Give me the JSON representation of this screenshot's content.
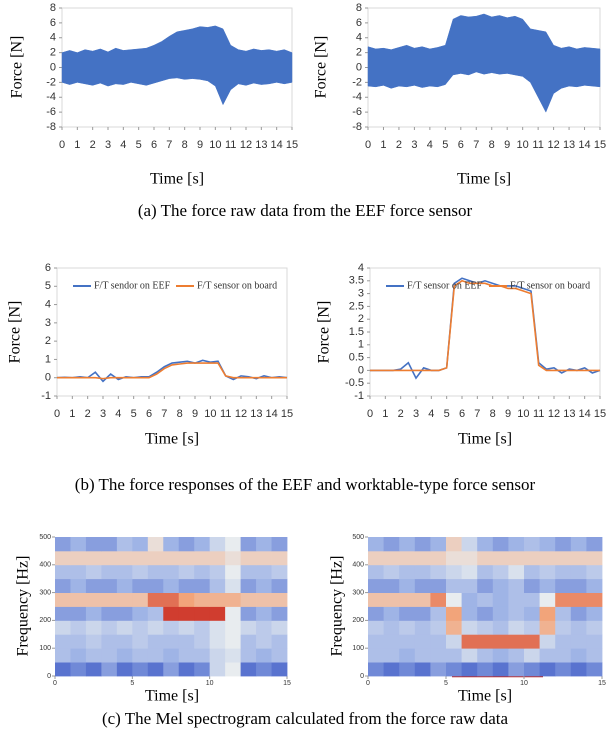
{
  "chart_data": [
    {
      "type": "band",
      "ylabel": "Force [N]",
      "xlabel": "Time [s]",
      "xlim": [
        0,
        15
      ],
      "xticks": [
        0,
        1,
        2,
        3,
        4,
        5,
        6,
        7,
        8,
        9,
        10,
        11,
        12,
        13,
        14,
        15
      ],
      "ylim": [
        -8,
        8
      ],
      "yticks": [
        -8,
        -6,
        -4,
        -2,
        0,
        2,
        4,
        6,
        8
      ],
      "x": [
        0,
        0.5,
        1,
        1.5,
        2,
        2.5,
        3,
        3.5,
        4,
        4.5,
        5,
        5.5,
        6,
        6.5,
        7,
        7.5,
        8,
        8.5,
        9,
        9.5,
        10,
        10.5,
        11,
        11.5,
        12,
        12.5,
        13,
        13.5,
        14,
        14.5,
        15
      ],
      "series": [
        {
          "color": "#4472c4",
          "high": [
            2,
            2.3,
            2,
            2.4,
            2.2,
            2.5,
            2.1,
            2.6,
            2.3,
            2.4,
            2.5,
            2.6,
            3,
            3.5,
            4.2,
            4.8,
            5,
            5.2,
            5.5,
            5.4,
            5.6,
            5.2,
            3,
            2.4,
            2.2,
            2.5,
            2.3,
            2.4,
            2.2,
            2.4,
            2
          ],
          "low": [
            -2,
            -2.3,
            -2,
            -2.2,
            -2.4,
            -2.1,
            -2.5,
            -2.2,
            -2.3,
            -2,
            -2.2,
            -2.4,
            -2.1,
            -1.8,
            -1.5,
            -1.4,
            -1.6,
            -1.5,
            -1.6,
            -1.8,
            -2.5,
            -5,
            -3,
            -2.2,
            -2.4,
            -2.1,
            -2.3,
            -2.2,
            -2,
            -2.2,
            -2
          ]
        }
      ]
    },
    {
      "type": "band",
      "ylabel": "Force [N]",
      "xlabel": "Time [s]",
      "xlim": [
        0,
        15
      ],
      "xticks": [
        0,
        1,
        2,
        3,
        4,
        5,
        6,
        7,
        8,
        9,
        10,
        11,
        12,
        13,
        14,
        15
      ],
      "ylim": [
        -8,
        8
      ],
      "yticks": [
        -8,
        -6,
        -4,
        -2,
        0,
        2,
        4,
        6,
        8
      ],
      "x": [
        0,
        0.5,
        1,
        1.5,
        2,
        2.5,
        3,
        3.5,
        4,
        4.5,
        5,
        5.5,
        6,
        6.5,
        7,
        7.5,
        8,
        8.5,
        9,
        9.5,
        10,
        10.5,
        11,
        11.5,
        12,
        12.5,
        13,
        13.5,
        14,
        14.5,
        15
      ],
      "series": [
        {
          "color": "#4472c4",
          "high": [
            2.8,
            2.5,
            2.6,
            2.4,
            2.7,
            3,
            2.6,
            2.8,
            2.5,
            2.7,
            3,
            6.5,
            7,
            6.8,
            6.9,
            7.2,
            6.8,
            7,
            6.7,
            6.9,
            6.5,
            5.2,
            5,
            4.8,
            3,
            2.6,
            2.8,
            2.5,
            2.7,
            2.6,
            2.5
          ],
          "low": [
            -2.5,
            -2.6,
            -2.4,
            -2.8,
            -2.5,
            -2.6,
            -2.4,
            -2.7,
            -2.5,
            -2.6,
            -2.3,
            -1,
            -0.8,
            -1,
            -0.6,
            -0.9,
            -0.7,
            -0.9,
            -0.8,
            -1,
            -1.2,
            -2,
            -4,
            -6,
            -3.5,
            -2.8,
            -2.5,
            -2.6,
            -2.4,
            -2.5,
            -2.6
          ]
        }
      ]
    },
    {
      "type": "line",
      "ylabel": "Force [N]",
      "xlabel": "Time [s]",
      "xlim": [
        0,
        15
      ],
      "xticks": [
        0,
        1,
        2,
        3,
        4,
        5,
        6,
        7,
        8,
        9,
        10,
        11,
        12,
        13,
        14,
        15
      ],
      "ylim": [
        -1,
        6
      ],
      "yticks": [
        -1,
        0,
        1,
        2,
        3,
        4,
        5,
        6
      ],
      "legend": "top",
      "x": [
        0,
        0.5,
        1,
        1.5,
        2,
        2.5,
        3,
        3.5,
        4,
        4.5,
        5,
        5.5,
        6,
        6.5,
        7,
        7.5,
        8,
        8.5,
        9,
        9.5,
        10,
        10.5,
        11,
        11.5,
        12,
        12.5,
        13,
        13.5,
        14,
        14.5,
        15
      ],
      "series": [
        {
          "name": "F/T sendor on EEF",
          "color": "#4472c4",
          "values": [
            0,
            0.02,
            0,
            0.05,
            0,
            0.3,
            -0.2,
            0.2,
            -0.1,
            0.05,
            0,
            0.05,
            0.05,
            0.3,
            0.6,
            0.8,
            0.85,
            0.9,
            0.8,
            0.95,
            0.85,
            0.9,
            0.1,
            -0.1,
            0.1,
            0.05,
            -0.05,
            0.1,
            0,
            0.05,
            0
          ]
        },
        {
          "name": "F/T sensor on board",
          "color": "#ed7d31",
          "values": [
            0,
            0,
            0,
            0,
            0,
            0,
            -0.05,
            0,
            0,
            0,
            0,
            0,
            0,
            0.2,
            0.5,
            0.7,
            0.75,
            0.8,
            0.8,
            0.8,
            0.8,
            0.8,
            0.1,
            0,
            0,
            0,
            0,
            0,
            0,
            0,
            0
          ]
        }
      ]
    },
    {
      "type": "line",
      "ylabel": "Force [N]",
      "xlabel": "Time [s]",
      "xlim": [
        0,
        15
      ],
      "xticks": [
        0,
        1,
        2,
        3,
        4,
        5,
        6,
        7,
        8,
        9,
        10,
        11,
        12,
        13,
        14,
        15
      ],
      "ylim": [
        -1,
        4
      ],
      "yticks": [
        -1,
        -0.5,
        0,
        0.5,
        1,
        1.5,
        2,
        2.5,
        3,
        3.5,
        4
      ],
      "legend": "top",
      "x": [
        0,
        0.5,
        1,
        1.5,
        2,
        2.5,
        3,
        3.5,
        4,
        4.5,
        5,
        5.5,
        6,
        6.5,
        7,
        7.5,
        8,
        8.5,
        9,
        9.5,
        10,
        10.5,
        11,
        11.5,
        12,
        12.5,
        13,
        13.5,
        14,
        14.5,
        15
      ],
      "series": [
        {
          "name": "F/T sensor on EEF",
          "color": "#4472c4",
          "values": [
            0,
            0,
            0,
            0,
            0.05,
            0.3,
            -0.3,
            0.1,
            0,
            0,
            0.1,
            3.4,
            3.6,
            3.5,
            3.4,
            3.5,
            3.4,
            3.3,
            3.3,
            3.3,
            3.2,
            3.1,
            0.3,
            0.05,
            0.1,
            -0.1,
            0.05,
            0,
            0.1,
            -0.1,
            0
          ]
        },
        {
          "name": "F/T sensor on board",
          "color": "#ed7d31",
          "values": [
            0,
            0,
            0,
            0,
            0,
            0,
            0,
            0,
            0,
            0,
            0.1,
            3.3,
            3.5,
            3.4,
            3.4,
            3.4,
            3.3,
            3.3,
            3.2,
            3.2,
            3.1,
            3,
            0.2,
            0,
            0,
            0,
            0,
            0,
            0,
            0,
            0
          ]
        }
      ]
    },
    {
      "type": "heatmap",
      "ylabel": "Frequency [Hz]",
      "xlabel": "Time [s]",
      "xlim": [
        0,
        15
      ],
      "xticks": [
        0,
        5,
        10,
        15
      ],
      "ylim": [
        0,
        500
      ],
      "yticks": [
        0,
        100,
        200,
        300,
        400,
        500
      ],
      "colors": [
        "#2a48c0",
        "#9fb4e6",
        "#e8ecef",
        "#f2a47a",
        "#c8231c"
      ],
      "xbins": [
        0,
        1,
        2,
        3,
        4,
        5,
        6,
        7,
        8,
        9,
        10,
        11,
        12,
        13,
        14,
        15
      ],
      "ybins": [
        0,
        50,
        100,
        150,
        200,
        250,
        300,
        350,
        400,
        450,
        500
      ],
      "z": [
        [
          0.1,
          0.15,
          0.1,
          0.2,
          0.1,
          0.15,
          0.1,
          0.2,
          0.1,
          0.15,
          0.4,
          0.5,
          0.1,
          0.15,
          0.1
        ],
        [
          0.3,
          0.25,
          0.3,
          0.3,
          0.25,
          0.3,
          0.3,
          0.25,
          0.3,
          0.3,
          0.4,
          0.45,
          0.3,
          0.25,
          0.3
        ],
        [
          0.3,
          0.3,
          0.35,
          0.3,
          0.3,
          0.35,
          0.3,
          0.3,
          0.3,
          0.35,
          0.45,
          0.5,
          0.3,
          0.35,
          0.3
        ],
        [
          0.4,
          0.35,
          0.4,
          0.35,
          0.4,
          0.35,
          0.4,
          0.35,
          0.4,
          0.35,
          0.45,
          0.5,
          0.4,
          0.35,
          0.4
        ],
        [
          0.2,
          0.2,
          0.25,
          0.2,
          0.2,
          0.25,
          0.3,
          0.95,
          0.95,
          0.95,
          0.95,
          0.5,
          0.2,
          0.25,
          0.2
        ],
        [
          0.65,
          0.65,
          0.65,
          0.65,
          0.65,
          0.65,
          0.85,
          0.85,
          0.75,
          0.7,
          0.7,
          0.7,
          0.65,
          0.65,
          0.65
        ],
        [
          0.2,
          0.25,
          0.2,
          0.2,
          0.25,
          0.2,
          0.2,
          0.25,
          0.2,
          0.2,
          0.3,
          0.45,
          0.2,
          0.25,
          0.2
        ],
        [
          0.3,
          0.3,
          0.35,
          0.3,
          0.3,
          0.35,
          0.3,
          0.3,
          0.35,
          0.3,
          0.35,
          0.5,
          0.3,
          0.3,
          0.35
        ],
        [
          0.6,
          0.6,
          0.6,
          0.6,
          0.6,
          0.6,
          0.6,
          0.6,
          0.6,
          0.6,
          0.6,
          0.55,
          0.6,
          0.6,
          0.6
        ],
        [
          0.2,
          0.25,
          0.2,
          0.2,
          0.3,
          0.25,
          0.55,
          0.25,
          0.2,
          0.25,
          0.4,
          0.5,
          0.2,
          0.25,
          0.2
        ]
      ]
    },
    {
      "type": "heatmap",
      "ylabel": "Frequency [Hz]",
      "xlabel": "Time [s]",
      "xlim": [
        0,
        15
      ],
      "xticks": [
        0,
        5,
        10,
        15
      ],
      "ylim": [
        0,
        500
      ],
      "yticks": [
        0,
        100,
        200,
        300,
        400,
        500
      ],
      "colors": [
        "#2a48c0",
        "#9fb4e6",
        "#e8ecef",
        "#f2a47a",
        "#c8231c"
      ],
      "xbins": [
        0,
        1,
        2,
        3,
        4,
        5,
        6,
        7,
        8,
        9,
        10,
        11,
        12,
        13,
        14,
        15
      ],
      "ybins": [
        0,
        50,
        100,
        150,
        200,
        250,
        300,
        350,
        400,
        450,
        500
      ],
      "z": [
        [
          0.15,
          0.1,
          0.15,
          0.1,
          0.2,
          0.15,
          0.1,
          0.15,
          0.1,
          0.2,
          0.15,
          0.1,
          0.15,
          0.1,
          0.15
        ],
        [
          0.3,
          0.3,
          0.25,
          0.3,
          0.3,
          0.3,
          0.4,
          0.3,
          0.25,
          0.3,
          0.4,
          0.3,
          0.3,
          0.25,
          0.3
        ],
        [
          0.3,
          0.3,
          0.3,
          0.3,
          0.3,
          0.4,
          0.85,
          0.85,
          0.85,
          0.85,
          0.85,
          0.4,
          0.3,
          0.3,
          0.3
        ],
        [
          0.35,
          0.3,
          0.35,
          0.3,
          0.35,
          0.7,
          0.4,
          0.35,
          0.3,
          0.4,
          0.35,
          0.7,
          0.35,
          0.3,
          0.35
        ],
        [
          0.2,
          0.25,
          0.2,
          0.2,
          0.3,
          0.75,
          0.25,
          0.2,
          0.25,
          0.3,
          0.25,
          0.75,
          0.3,
          0.2,
          0.25
        ],
        [
          0.65,
          0.65,
          0.65,
          0.65,
          0.8,
          0.5,
          0.25,
          0.3,
          0.25,
          0.3,
          0.3,
          0.5,
          0.8,
          0.8,
          0.8
        ],
        [
          0.2,
          0.2,
          0.25,
          0.2,
          0.2,
          0.3,
          0.3,
          0.2,
          0.25,
          0.3,
          0.2,
          0.25,
          0.2,
          0.2,
          0.25
        ],
        [
          0.3,
          0.35,
          0.3,
          0.3,
          0.35,
          0.4,
          0.45,
          0.3,
          0.35,
          0.45,
          0.3,
          0.35,
          0.3,
          0.3,
          0.35
        ],
        [
          0.6,
          0.6,
          0.6,
          0.6,
          0.6,
          0.55,
          0.55,
          0.6,
          0.6,
          0.6,
          0.6,
          0.6,
          0.6,
          0.6,
          0.6
        ],
        [
          0.25,
          0.2,
          0.25,
          0.2,
          0.25,
          0.6,
          0.4,
          0.25,
          0.2,
          0.25,
          0.3,
          0.25,
          0.2,
          0.25,
          0.2
        ]
      ]
    }
  ],
  "captions": [
    "(a) The force raw data from the EEF force sensor",
    "(b) The force responses of the EEF and worktable-type force sensor",
    "(c) The Mel spectrogram calculated from the force raw data"
  ]
}
